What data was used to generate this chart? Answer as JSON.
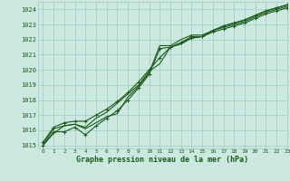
{
  "title": "Graphe pression niveau de la mer (hPa)",
  "bg_color": "#cce8e0",
  "grid_color": "#99ccc0",
  "line_color": "#1a5c1a",
  "xlim": [
    -0.5,
    23
  ],
  "ylim": [
    1014.8,
    1024.5
  ],
  "yticks": [
    1015,
    1016,
    1017,
    1018,
    1019,
    1020,
    1021,
    1022,
    1023,
    1024
  ],
  "xticks": [
    0,
    1,
    2,
    3,
    4,
    5,
    6,
    7,
    8,
    9,
    10,
    11,
    12,
    13,
    14,
    15,
    16,
    17,
    18,
    19,
    20,
    21,
    22,
    23
  ],
  "series": [
    {
      "y": [
        1015.0,
        1015.8,
        1016.3,
        1016.4,
        1016.1,
        1016.5,
        1016.9,
        1017.1,
        1018.2,
        1018.9,
        1019.8,
        1021.6,
        1021.6,
        1022.0,
        1022.3,
        1022.3,
        1022.6,
        1022.8,
        1023.0,
        1023.2,
        1023.5,
        1023.8,
        1024.0,
        1024.2
      ],
      "marker": false,
      "lw": 0.8
    },
    {
      "y": [
        1015.1,
        1016.1,
        1016.3,
        1016.4,
        1016.2,
        1016.8,
        1017.2,
        1017.8,
        1018.4,
        1019.0,
        1019.9,
        1020.4,
        1021.5,
        1021.7,
        1022.1,
        1022.2,
        1022.6,
        1022.9,
        1023.1,
        1023.3,
        1023.6,
        1023.9,
        1024.1,
        1024.3
      ],
      "marker": false,
      "lw": 0.8
    },
    {
      "y": [
        1015.2,
        1016.2,
        1016.5,
        1016.6,
        1016.6,
        1017.0,
        1017.4,
        1017.9,
        1018.5,
        1019.2,
        1020.0,
        1020.8,
        1021.5,
        1021.8,
        1022.1,
        1022.2,
        1022.6,
        1022.9,
        1023.1,
        1023.3,
        1023.6,
        1023.9,
        1024.1,
        1024.3
      ],
      "marker": true,
      "lw": 0.8
    },
    {
      "y": [
        1015.0,
        1015.9,
        1015.9,
        1016.2,
        1015.7,
        1016.3,
        1016.8,
        1017.3,
        1018.0,
        1018.8,
        1019.7,
        1021.4,
        1021.5,
        1021.8,
        1022.2,
        1022.2,
        1022.5,
        1022.7,
        1022.9,
        1023.1,
        1023.4,
        1023.7,
        1023.9,
        1024.1
      ],
      "marker": true,
      "lw": 0.8
    }
  ]
}
